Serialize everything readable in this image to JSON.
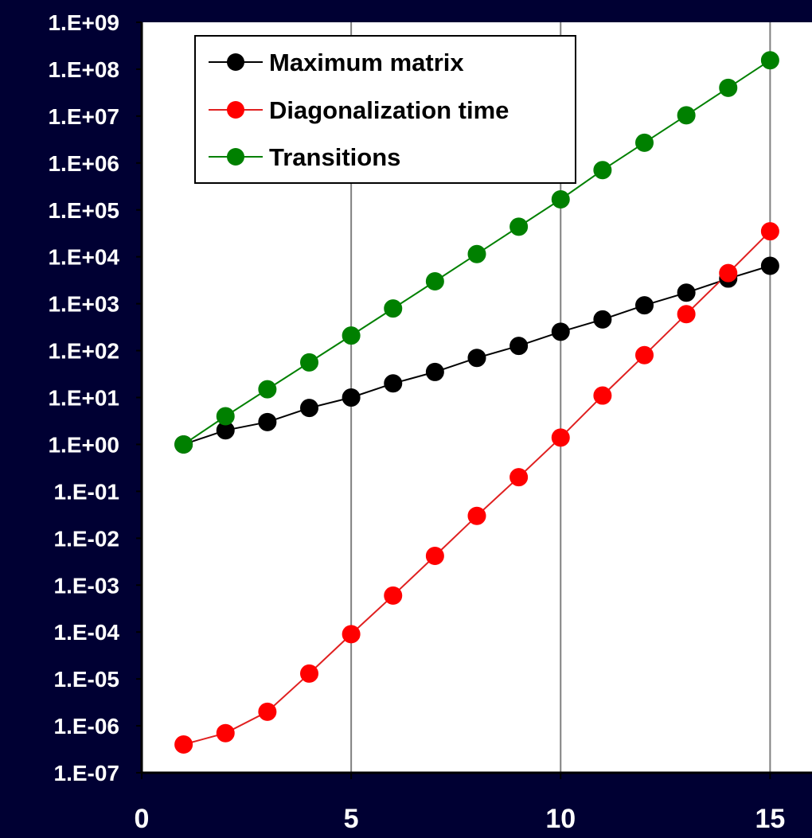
{
  "chart_data": {
    "type": "line",
    "title": "",
    "xlabel": "",
    "ylabel": "",
    "x_scale": "linear",
    "y_scale": "log",
    "xlim": [
      0,
      16
    ],
    "x_ticks": [
      0,
      5,
      10,
      15
    ],
    "x_tick_labels": [
      "0",
      "5",
      "10",
      "15"
    ],
    "ylim": [
      1e-07,
      1000000000.0
    ],
    "y_ticks": [
      1000000000.0,
      100000000.0,
      10000000.0,
      1000000.0,
      100000.0,
      10000.0,
      1000.0,
      100.0,
      10.0,
      1.0,
      0.1,
      0.01,
      0.001,
      0.0001,
      1e-05,
      1e-06,
      1e-07
    ],
    "y_tick_labels": [
      "1.E+09",
      "1.E+08",
      "1.E+07",
      "1.E+06",
      "1.E+05",
      "1.E+04",
      "1.E+03",
      "1.E+02",
      "1.E+01",
      "1.E+00",
      "1.E-01",
      "1.E-02",
      "1.E-03",
      "1.E-04",
      "1.E-05",
      "1.E-06",
      "1.E-07"
    ],
    "grid": "vertical-only",
    "legend_position": "top-left",
    "background": "#000033",
    "plot_background": "#ffffff",
    "x": [
      1,
      2,
      3,
      4,
      5,
      6,
      7,
      8,
      9,
      10,
      11,
      12,
      13,
      14,
      15
    ],
    "series": [
      {
        "name": "Maximum matrix",
        "color": "#000000",
        "line_color": "#000000",
        "values": [
          1,
          2,
          3,
          6,
          10,
          20,
          35,
          70,
          126,
          252,
          462,
          924,
          1716,
          3432,
          6435
        ]
      },
      {
        "name": "Diagonalization time",
        "color": "#ff0000",
        "line_color": "#e02020",
        "values": [
          4e-07,
          7e-07,
          2e-06,
          1.3e-05,
          9e-05,
          0.0006,
          0.0042,
          0.03,
          0.2,
          1.4,
          11,
          80,
          600,
          4500,
          35000
        ]
      },
      {
        "name": "Transitions",
        "color": "#008000",
        "line_color": "#008000",
        "values": [
          1,
          4,
          15,
          56,
          210,
          792,
          3003,
          11440,
          43758,
          167960,
          705432,
          2704156,
          10400600,
          40116600,
          155117520
        ]
      }
    ]
  }
}
